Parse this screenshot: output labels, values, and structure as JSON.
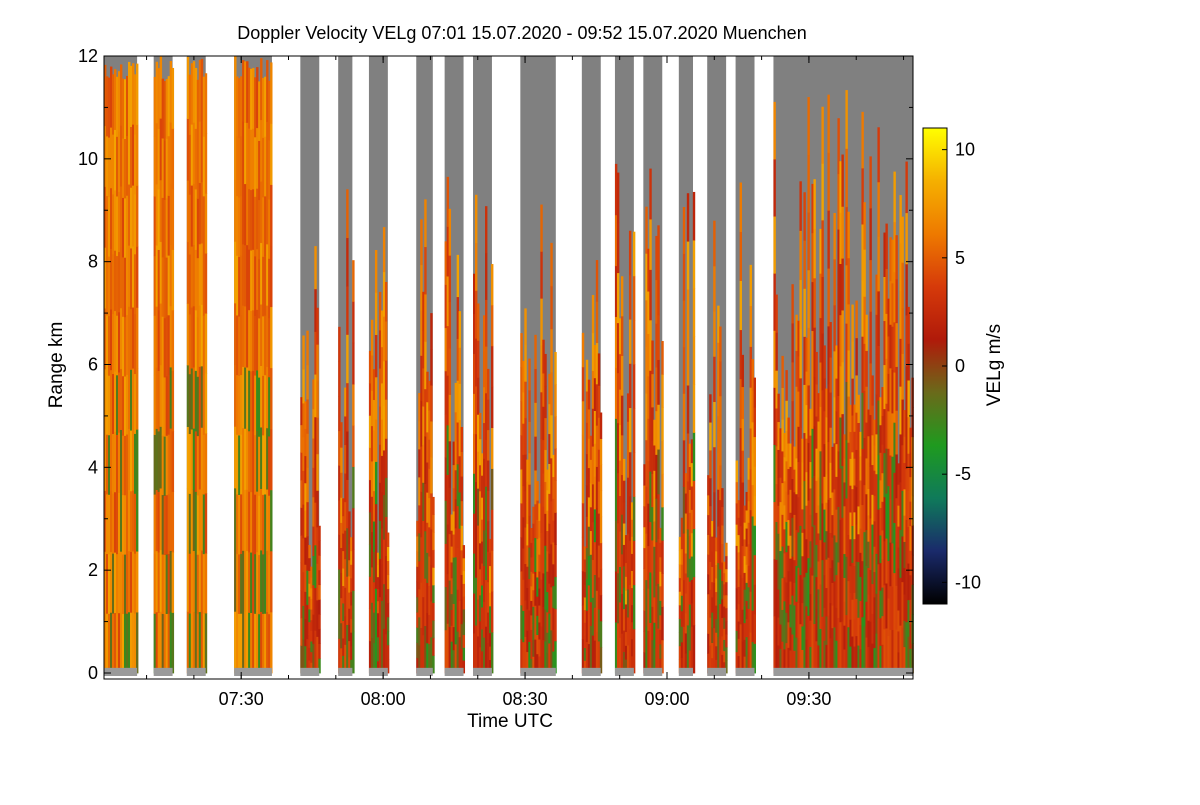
{
  "chart_data": {
    "type": "heatmap",
    "title": "Doppler Velocity VELg   07:01 15.07.2020 - 09:52 15.07.2020 Muenchen",
    "xlabel": "Time UTC",
    "ylabel": "Range km",
    "x_start": "07:01",
    "x_end": "09:52",
    "xticks": [
      "07:30",
      "08:00",
      "08:30",
      "09:00",
      "09:30"
    ],
    "xtick_minutes": [
      29,
      59,
      89,
      119,
      149
    ],
    "x_range_minutes": [
      0,
      171
    ],
    "ylim": [
      0,
      12
    ],
    "yticks": [
      0,
      2,
      4,
      6,
      8,
      10,
      12
    ],
    "colorbar": {
      "label": "VELg m/s",
      "range": [
        -11,
        11
      ],
      "ticks": [
        -10,
        -5,
        0,
        5,
        10
      ],
      "colors": [
        "#000000",
        "#1a2a6b",
        "#0f7a5a",
        "#1f9a1f",
        "#6a6a1a",
        "#b01a0a",
        "#d63a0a",
        "#ee7a00",
        "#f5b000",
        "#ffff00"
      ]
    },
    "no_signal_color": "#808080",
    "scan_blocks_minutes": [
      [
        0,
        7
      ],
      [
        10.5,
        14.5
      ],
      [
        17.5,
        21.5
      ],
      [
        27.5,
        35.5
      ],
      [
        41.5,
        45.5
      ],
      [
        49.5,
        52.5
      ],
      [
        56,
        60
      ],
      [
        66,
        69.5
      ],
      [
        72,
        76
      ],
      [
        78,
        82
      ],
      [
        88,
        95.5
      ],
      [
        101,
        105
      ],
      [
        108,
        112
      ],
      [
        114,
        118
      ],
      [
        121.5,
        124.5
      ],
      [
        127.5,
        131.5
      ],
      [
        133.5,
        137.5
      ],
      [
        141.5,
        171
      ]
    ]
  }
}
